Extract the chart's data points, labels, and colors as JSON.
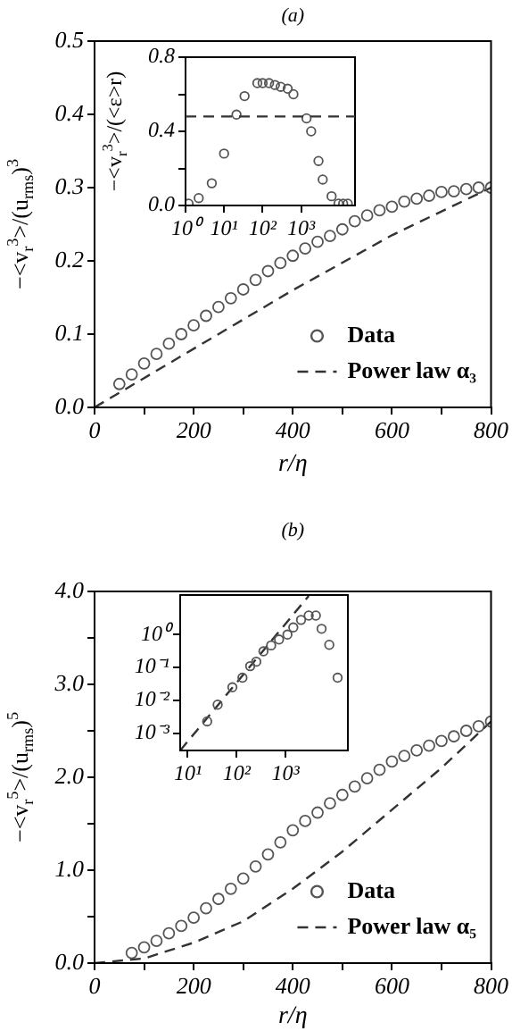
{
  "chart_data": [
    {
      "type": "scatter",
      "title": "(a)",
      "xlabel": "r/η",
      "ylabel": "−<v$_{r}$$^{3}$>/(u$_{rms}$)$^{3}$",
      "xlim": [
        0,
        800
      ],
      "ylim": [
        0,
        0.5
      ],
      "xticks": [
        0,
        {
          "value": 100,
          "label": null
        },
        200,
        {
          "value": 300,
          "label": null
        },
        400,
        {
          "value": 500,
          "label": null
        },
        600,
        {
          "value": 700,
          "label": null
        },
        800
      ],
      "yticks": [
        {
          "value": 0,
          "label": "0.0"
        },
        0.1,
        0.2,
        0.3,
        0.4,
        0.5
      ],
      "series": [
        {
          "name": "Data",
          "color": "#555555",
          "x": [
            50,
            75,
            100,
            125,
            150,
            175,
            200,
            225,
            250,
            275,
            300,
            325,
            350,
            375,
            400,
            425,
            450,
            475,
            500,
            525,
            550,
            575,
            600,
            625,
            650,
            675,
            700,
            725,
            750,
            775,
            800
          ],
          "values": [
            0.032,
            0.045,
            0.06,
            0.073,
            0.087,
            0.1,
            0.112,
            0.125,
            0.137,
            0.149,
            0.161,
            0.174,
            0.186,
            0.197,
            0.207,
            0.217,
            0.226,
            0.234,
            0.243,
            0.254,
            0.262,
            0.269,
            0.274,
            0.281,
            0.285,
            0.289,
            0.294,
            0.295,
            0.298,
            0.3,
            0.3
          ]
        },
        {
          "name": "Power law α₃",
          "type": "line",
          "color": "#333333",
          "marker": "none",
          "line_style": "dashed",
          "x": [
            0,
            100,
            200,
            400,
            600,
            800
          ],
          "values": [
            0,
            0.04,
            0.08,
            0.16,
            0.235,
            0.3
          ]
        }
      ],
      "marker": "circle",
      "legend": "bottom right",
      "grid": false
    },
    {
      "type": "scatter",
      "ylabel": "−<v$_{r}$$^{3}$>/(<ε>r)",
      "log": "x",
      "xlim": [
        1,
        25000
      ],
      "ylim": [
        0,
        0.8
      ],
      "xticks": [
        {
          "value": 1,
          "label": "10⁰"
        },
        {
          "value": 10,
          "label": "10¹"
        },
        {
          "value": 100,
          "label": "10²"
        },
        {
          "value": 1000,
          "label": "10³"
        }
      ],
      "yticks": [
        {
          "value": 0,
          "label": "0.0"
        },
        {
          "value": 0.2,
          "label": null
        },
        0.4,
        {
          "value": 0.6,
          "label": null
        },
        0.8
      ],
      "series": [
        {
          "color": "#555555",
          "x": [
            1.2,
            2.2,
            4.8,
            10,
            21,
            34,
            73,
            100,
            147,
            209,
            295,
            447,
            631,
            1380,
            1820,
            2820,
            3630,
            6170,
            9330,
            12300,
            16200
          ],
          "values": [
            0.01,
            0.04,
            0.12,
            0.28,
            0.49,
            0.59,
            0.66,
            0.66,
            0.66,
            0.65,
            0.64,
            0.63,
            0.6,
            0.47,
            0.4,
            0.24,
            0.14,
            0.05,
            0.01,
            0.01,
            0.01
          ]
        }
      ],
      "ref_lines": [
        {
          "axis": "y",
          "value": 0.48,
          "color": "#333333",
          "line_style": "dashed"
        }
      ],
      "marker": "circle",
      "grid": false
    },
    {
      "type": "scatter",
      "title": "(b)",
      "xlabel": "r/η",
      "ylabel": "−<v$_{r}$$^{5}$>/(u$_{rms}$)$^{5}$",
      "xlim": [
        0,
        800
      ],
      "ylim": [
        0,
        4
      ],
      "xticks": [
        0,
        {
          "value": 100,
          "label": null
        },
        200,
        {
          "value": 300,
          "label": null
        },
        400,
        {
          "value": 500,
          "label": null
        },
        600,
        {
          "value": 700,
          "label": null
        },
        800
      ],
      "yticks": [
        {
          "value": 0,
          "label": "0.0"
        },
        {
          "value": 0.5,
          "label": null
        },
        {
          "value": 1,
          "label": "1.0"
        },
        {
          "value": 1.5,
          "label": null
        },
        {
          "value": 2,
          "label": "2.0"
        },
        {
          "value": 2.5,
          "label": null
        },
        {
          "value": 3,
          "label": "3.0"
        },
        {
          "value": 3.5,
          "label": null
        },
        {
          "value": 4,
          "label": "4.0"
        }
      ],
      "series": [
        {
          "name": "Data",
          "color": "#555555",
          "x": [
            75,
            100,
            125,
            150,
            175,
            200,
            225,
            250,
            275,
            300,
            325,
            350,
            375,
            400,
            425,
            450,
            475,
            500,
            525,
            550,
            575,
            600,
            625,
            650,
            675,
            700,
            725,
            750,
            775,
            800
          ],
          "values": [
            0.11,
            0.17,
            0.24,
            0.32,
            0.4,
            0.49,
            0.59,
            0.69,
            0.8,
            0.91,
            1.04,
            1.17,
            1.3,
            1.43,
            1.53,
            1.62,
            1.72,
            1.81,
            1.9,
            1.99,
            2.08,
            2.17,
            2.23,
            2.29,
            2.34,
            2.39,
            2.44,
            2.5,
            2.55,
            2.6
          ]
        },
        {
          "name": "Power law α₅",
          "type": "line",
          "color": "#333333",
          "marker": "none",
          "line_style": "dashed",
          "x": [
            0,
            100,
            200,
            300,
            400,
            500,
            600,
            700,
            800
          ],
          "values": [
            0,
            0.05,
            0.22,
            0.45,
            0.8,
            1.2,
            1.65,
            2.1,
            2.6
          ]
        }
      ],
      "marker": "circle",
      "legend": "bottom right",
      "grid": false
    },
    {
      "type": "scatter",
      "log": "xy",
      "xlim": [
        7,
        19000
      ],
      "ylim": [
        0.0003,
        16
      ],
      "xticks": [
        {
          "value": 10,
          "label": "10¹"
        },
        {
          "value": 100,
          "label": "10²"
        },
        {
          "value": 1000,
          "label": "10³"
        }
      ],
      "yticks": [
        {
          "value": 0.001,
          "label": "10⁻³"
        },
        {
          "value": 0.01,
          "label": "10⁻²"
        },
        {
          "value": 0.1,
          "label": "10⁻¹"
        },
        {
          "value": 1,
          "label": "10⁰"
        }
      ],
      "series": [
        {
          "color": "#555555",
          "x": [
            25,
            41,
            82,
            132,
            190,
            253,
            355,
            510,
            740,
            1100,
            1450,
            2090,
            3000,
            4200,
            5500,
            7900,
            11700
          ],
          "values": [
            0.0023,
            0.0074,
            0.025,
            0.049,
            0.11,
            0.15,
            0.31,
            0.47,
            0.71,
            1.0,
            1.65,
            2.8,
            3.8,
            3.8,
            1.5,
            0.49,
            0.049
          ]
        },
        {
          "type": "line",
          "color": "#333333",
          "marker": "none",
          "line_style": "dashed",
          "x": [
            7,
            3000
          ],
          "values": [
            0.0003,
            15
          ]
        }
      ],
      "marker": "circle",
      "grid": false
    }
  ]
}
